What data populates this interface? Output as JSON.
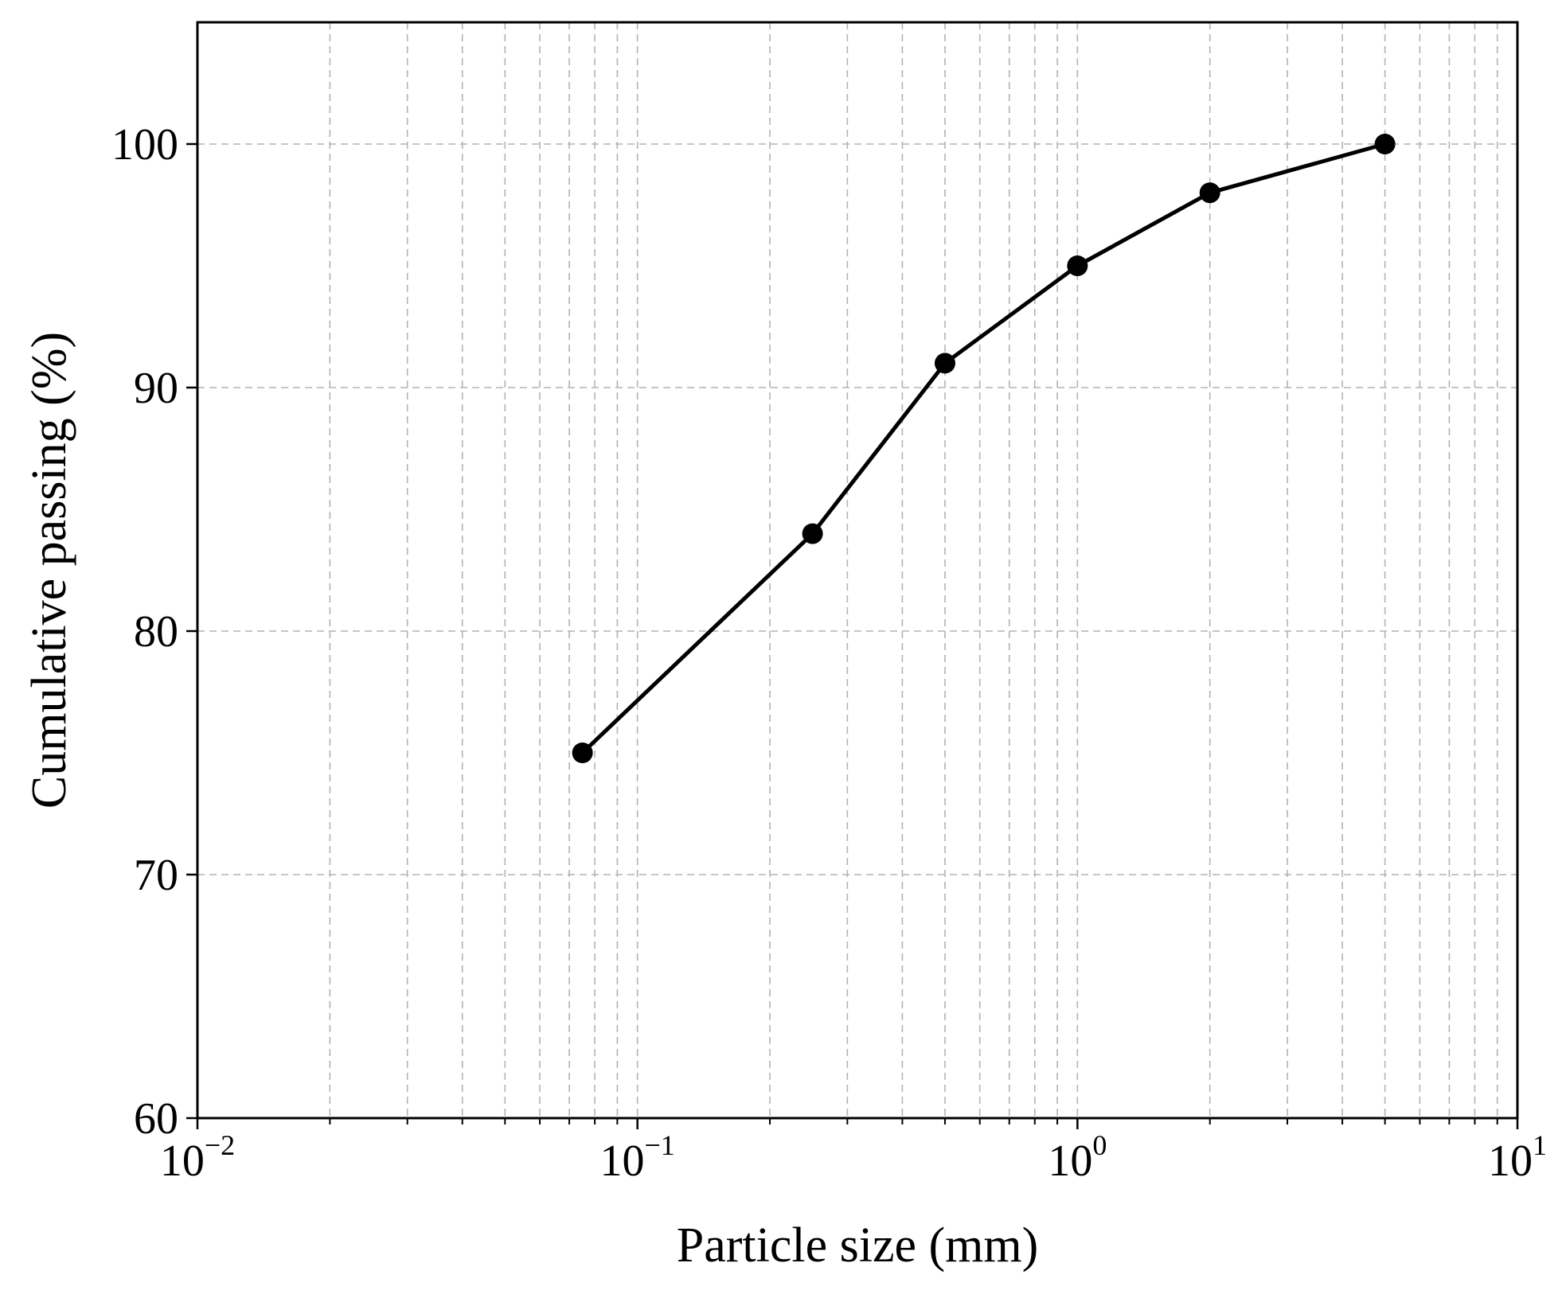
{
  "chart_data": {
    "type": "line",
    "xlabel": "Particle size (mm)",
    "ylabel": "Cumulative passing (%)",
    "xscale": "log",
    "xlim": [
      0.01,
      10
    ],
    "ylim": [
      60,
      105
    ],
    "x_ticks": [
      {
        "base": "10",
        "exp": "−2",
        "value": 0.01
      },
      {
        "base": "10",
        "exp": "−1",
        "value": 0.1
      },
      {
        "base": "10",
        "exp": "0",
        "value": 1
      },
      {
        "base": "10",
        "exp": "1",
        "value": 10
      }
    ],
    "y_ticks": [
      {
        "label": "60",
        "value": 60
      },
      {
        "label": "70",
        "value": 70
      },
      {
        "label": "80",
        "value": 80
      },
      {
        "label": "90",
        "value": 90
      },
      {
        "label": "100",
        "value": 100
      }
    ],
    "grid": true,
    "grid_style": "dashed",
    "line_color": "#000000",
    "grid_color": "#b3b3b3",
    "series": [
      {
        "x": [
          0.075,
          0.25,
          0.5,
          1,
          2,
          5
        ],
        "y": [
          75,
          84,
          91,
          95,
          98,
          100
        ]
      }
    ]
  }
}
